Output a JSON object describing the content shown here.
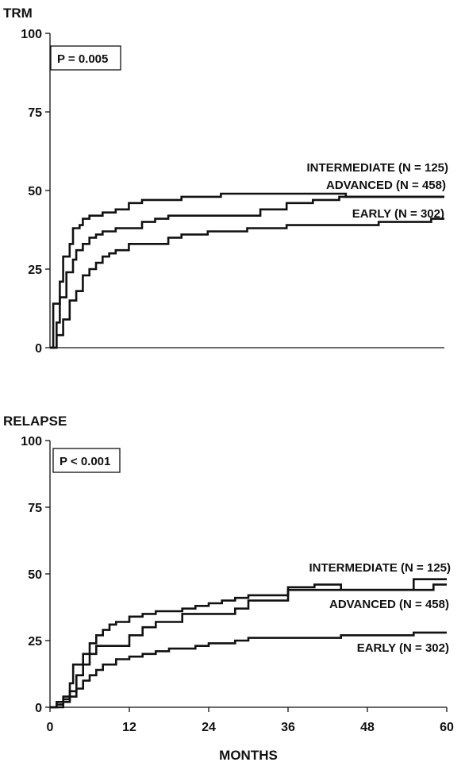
{
  "chart_data": [
    {
      "type": "line",
      "step": true,
      "title": "TRM",
      "p_value": "P = 0.005",
      "xlabel": "",
      "ylabel": "",
      "xlim": [
        0,
        60
      ],
      "ylim": [
        0,
        100
      ],
      "xticks": [],
      "yticks": [
        0,
        25,
        50,
        75,
        100
      ],
      "grid": false,
      "series": [
        {
          "name": "INTERMEDIATE (N = 125)",
          "points": [
            [
              0,
              0
            ],
            [
              0.5,
              0
            ],
            [
              0.5,
              14
            ],
            [
              1.5,
              14
            ],
            [
              1.5,
              21
            ],
            [
              2,
              21
            ],
            [
              2,
              29
            ],
            [
              3,
              29
            ],
            [
              3,
              33
            ],
            [
              3.5,
              33
            ],
            [
              3.5,
              38
            ],
            [
              4.5,
              38
            ],
            [
              4.5,
              39
            ],
            [
              5,
              39
            ],
            [
              5,
              41
            ],
            [
              6,
              41
            ],
            [
              6,
              42
            ],
            [
              8,
              42
            ],
            [
              8,
              43
            ],
            [
              10,
              43
            ],
            [
              10,
              44
            ],
            [
              12,
              44
            ],
            [
              12,
              46
            ],
            [
              14,
              46
            ],
            [
              14,
              47
            ],
            [
              20,
              47
            ],
            [
              20,
              48
            ],
            [
              26,
              48
            ],
            [
              26,
              49
            ],
            [
              45,
              49
            ],
            [
              45,
              48
            ],
            [
              60,
              48
            ]
          ]
        },
        {
          "name": "ADVANCED (N = 458)",
          "points": [
            [
              0,
              0
            ],
            [
              1,
              0
            ],
            [
              1,
              8
            ],
            [
              1.5,
              8
            ],
            [
              1.5,
              16
            ],
            [
              2.5,
              16
            ],
            [
              2.5,
              24
            ],
            [
              3.5,
              24
            ],
            [
              3.5,
              28
            ],
            [
              4,
              28
            ],
            [
              4,
              31
            ],
            [
              5,
              31
            ],
            [
              5,
              33
            ],
            [
              6,
              33
            ],
            [
              6,
              35
            ],
            [
              7,
              35
            ],
            [
              7,
              36
            ],
            [
              8,
              36
            ],
            [
              8,
              37
            ],
            [
              10,
              37
            ],
            [
              10,
              38
            ],
            [
              14,
              38
            ],
            [
              14,
              40
            ],
            [
              16,
              40
            ],
            [
              16,
              41
            ],
            [
              18,
              41
            ],
            [
              18,
              42
            ],
            [
              32,
              42
            ],
            [
              32,
              44
            ],
            [
              36,
              44
            ],
            [
              36,
              46
            ],
            [
              40,
              46
            ],
            [
              40,
              47
            ],
            [
              44,
              47
            ],
            [
              44,
              48
            ],
            [
              60,
              48
            ]
          ]
        },
        {
          "name": "EARLY (N = 302)",
          "points": [
            [
              0,
              0
            ],
            [
              1,
              0
            ],
            [
              1,
              4
            ],
            [
              2,
              4
            ],
            [
              2,
              9
            ],
            [
              3,
              9
            ],
            [
              3,
              15
            ],
            [
              4,
              15
            ],
            [
              4,
              18
            ],
            [
              5,
              18
            ],
            [
              5,
              23
            ],
            [
              6,
              23
            ],
            [
              6,
              25
            ],
            [
              7,
              25
            ],
            [
              7,
              27
            ],
            [
              8,
              27
            ],
            [
              8,
              29
            ],
            [
              9,
              29
            ],
            [
              9,
              30
            ],
            [
              10,
              30
            ],
            [
              10,
              31
            ],
            [
              12,
              31
            ],
            [
              12,
              33
            ],
            [
              18,
              33
            ],
            [
              18,
              35
            ],
            [
              20,
              35
            ],
            [
              20,
              36
            ],
            [
              24,
              36
            ],
            [
              24,
              37
            ],
            [
              30,
              37
            ],
            [
              30,
              38
            ],
            [
              36,
              38
            ],
            [
              36,
              39
            ],
            [
              50,
              39
            ],
            [
              50,
              40
            ],
            [
              58,
              40
            ],
            [
              58,
              41
            ],
            [
              60,
              41
            ]
          ]
        }
      ]
    },
    {
      "type": "line",
      "step": true,
      "title": "RELAPSE",
      "p_value": "P < 0.001",
      "xlabel": "MONTHS",
      "ylabel": "",
      "xlim": [
        0,
        60
      ],
      "ylim": [
        0,
        100
      ],
      "xticks": [
        0,
        12,
        24,
        36,
        48,
        60
      ],
      "yticks": [
        0,
        25,
        50,
        75,
        100
      ],
      "grid": false,
      "series": [
        {
          "name": "INTERMEDIATE (N = 125)",
          "points": [
            [
              0,
              0
            ],
            [
              1,
              0
            ],
            [
              1,
              2
            ],
            [
              2,
              2
            ],
            [
              2,
              4
            ],
            [
              3,
              4
            ],
            [
              3,
              9
            ],
            [
              3.5,
              9
            ],
            [
              3.5,
              16
            ],
            [
              5,
              16
            ],
            [
              5,
              20
            ],
            [
              6,
              20
            ],
            [
              6,
              24
            ],
            [
              7,
              24
            ],
            [
              7,
              27
            ],
            [
              8,
              27
            ],
            [
              8,
              29
            ],
            [
              9,
              29
            ],
            [
              9,
              31
            ],
            [
              10,
              31
            ],
            [
              10,
              32
            ],
            [
              12,
              32
            ],
            [
              12,
              34
            ],
            [
              14,
              34
            ],
            [
              14,
              35
            ],
            [
              16,
              35
            ],
            [
              16,
              36
            ],
            [
              20,
              36
            ],
            [
              20,
              37
            ],
            [
              22,
              37
            ],
            [
              22,
              38
            ],
            [
              24,
              38
            ],
            [
              24,
              39
            ],
            [
              26,
              39
            ],
            [
              26,
              40
            ],
            [
              28,
              40
            ],
            [
              28,
              41
            ],
            [
              30,
              41
            ],
            [
              30,
              42
            ],
            [
              36,
              42
            ],
            [
              36,
              45
            ],
            [
              40,
              45
            ],
            [
              40,
              46
            ],
            [
              44,
              46
            ],
            [
              44,
              44
            ],
            [
              55,
              44
            ],
            [
              55,
              48
            ],
            [
              60,
              48
            ]
          ]
        },
        {
          "name": "ADVANCED (N = 458)",
          "points": [
            [
              0,
              0
            ],
            [
              1,
              0
            ],
            [
              1,
              1
            ],
            [
              2,
              1
            ],
            [
              2,
              3
            ],
            [
              3,
              3
            ],
            [
              3,
              6
            ],
            [
              4,
              6
            ],
            [
              4,
              12
            ],
            [
              5,
              12
            ],
            [
              5,
              16
            ],
            [
              6,
              16
            ],
            [
              6,
              20
            ],
            [
              7,
              20
            ],
            [
              7,
              23
            ],
            [
              12,
              23
            ],
            [
              12,
              27
            ],
            [
              14,
              27
            ],
            [
              14,
              30
            ],
            [
              16,
              30
            ],
            [
              16,
              32
            ],
            [
              20,
              32
            ],
            [
              20,
              35
            ],
            [
              28,
              35
            ],
            [
              28,
              37
            ],
            [
              30,
              37
            ],
            [
              30,
              40
            ],
            [
              36,
              40
            ],
            [
              36,
              44
            ],
            [
              58,
              44
            ],
            [
              58,
              46
            ],
            [
              60,
              46
            ]
          ]
        },
        {
          "name": "EARLY (N = 302)",
          "points": [
            [
              0,
              0
            ],
            [
              2,
              0
            ],
            [
              2,
              2
            ],
            [
              3,
              2
            ],
            [
              3,
              4
            ],
            [
              4,
              4
            ],
            [
              4,
              7
            ],
            [
              5,
              7
            ],
            [
              5,
              10
            ],
            [
              6,
              10
            ],
            [
              6,
              12
            ],
            [
              7,
              12
            ],
            [
              7,
              14
            ],
            [
              8,
              14
            ],
            [
              8,
              16
            ],
            [
              10,
              16
            ],
            [
              10,
              18
            ],
            [
              12,
              18
            ],
            [
              12,
              19
            ],
            [
              14,
              19
            ],
            [
              14,
              20
            ],
            [
              16,
              20
            ],
            [
              16,
              21
            ],
            [
              18,
              21
            ],
            [
              18,
              22
            ],
            [
              22,
              22
            ],
            [
              22,
              23
            ],
            [
              24,
              23
            ],
            [
              24,
              24
            ],
            [
              28,
              24
            ],
            [
              28,
              25
            ],
            [
              30,
              25
            ],
            [
              30,
              26
            ],
            [
              44,
              26
            ],
            [
              44,
              27
            ],
            [
              55,
              27
            ],
            [
              55,
              28
            ],
            [
              60,
              28
            ]
          ]
        }
      ]
    }
  ]
}
